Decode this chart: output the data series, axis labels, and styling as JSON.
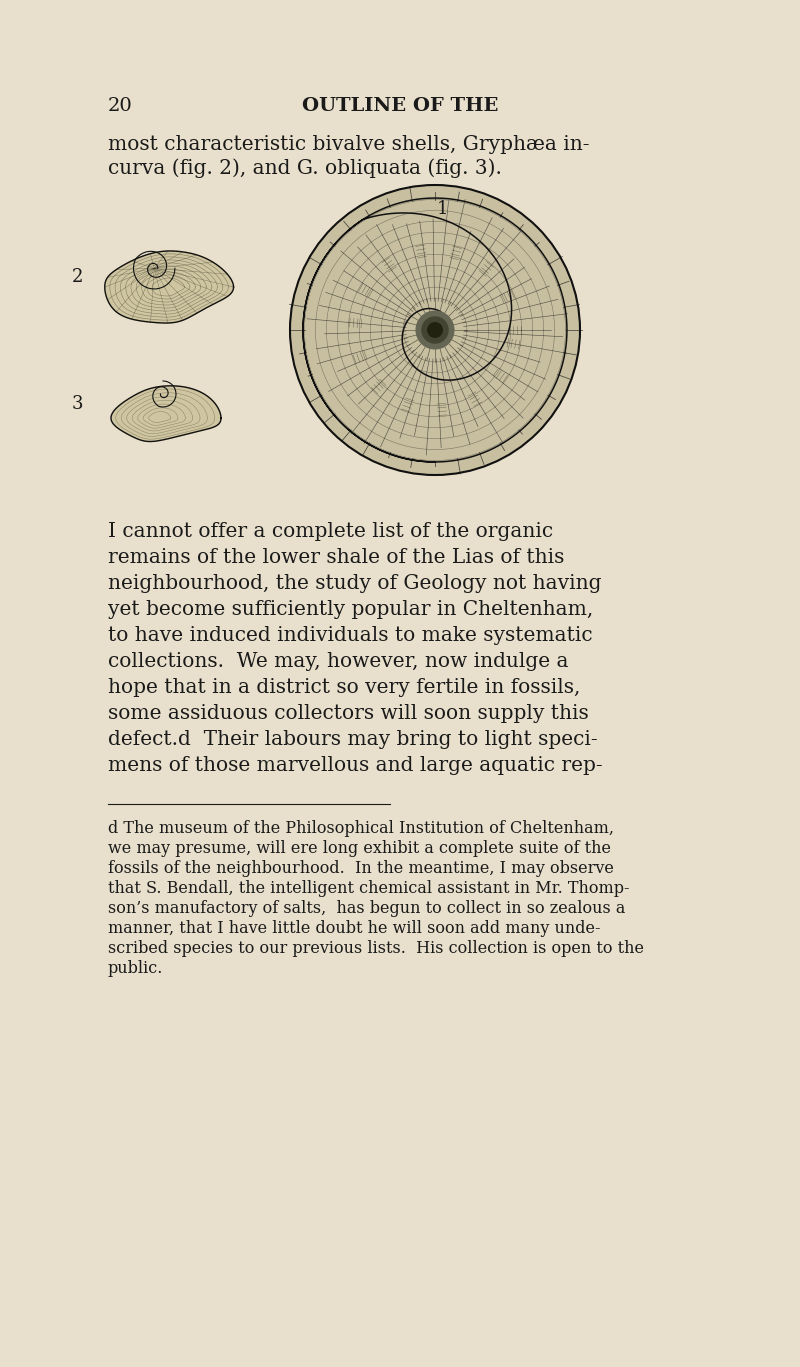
{
  "background_color": "#e8e0cc",
  "page_number": "20",
  "header": "OUTLINE OF THE",
  "intro_line1": "most characteristic bivalve shells, Gryphæa in-",
  "intro_line2": "curva (fig. 2), and G. obliquata (fig. 3).",
  "main_text_lines": [
    "I cannot offer a complete list of the organic",
    "remains of the lower shale of the Lias of this",
    "neighbourhood, the study of Geology not having",
    "yet become sufficiently popular in Cheltenham,",
    "to have induced individuals to make systematic",
    "collections.  We may, however, now indulge a",
    "hope that in a district so very fertile in fossils,",
    "some assiduous collectors will soon supply this",
    "defect.d  Their labours may bring to light speci-",
    "mens of those marvellous and large aquatic rep-"
  ],
  "footnote_lines": [
    "d The museum of the Philosophical Institution of Cheltenham,",
    "we may presume, will ere long exhibit a complete suite of the",
    "fossils of the neighbourhood.  In the meantime, I may observe",
    "that S. Bendall, the intelligent chemical assistant in Mr. Thomp-",
    "son’s manufactory of salts,  has begun to collect in so zealous a",
    "manner, that I have little doubt he will soon add many unde-",
    "scribed species to our previous lists.  His collection is open to the",
    "public."
  ],
  "text_color": "#1a1a1a",
  "fig1_label": "1",
  "fig2_label": "2",
  "fig3_label": "3",
  "body_fontsize": 14.5,
  "header_fontsize": 14,
  "footnote_fontsize": 11.5
}
